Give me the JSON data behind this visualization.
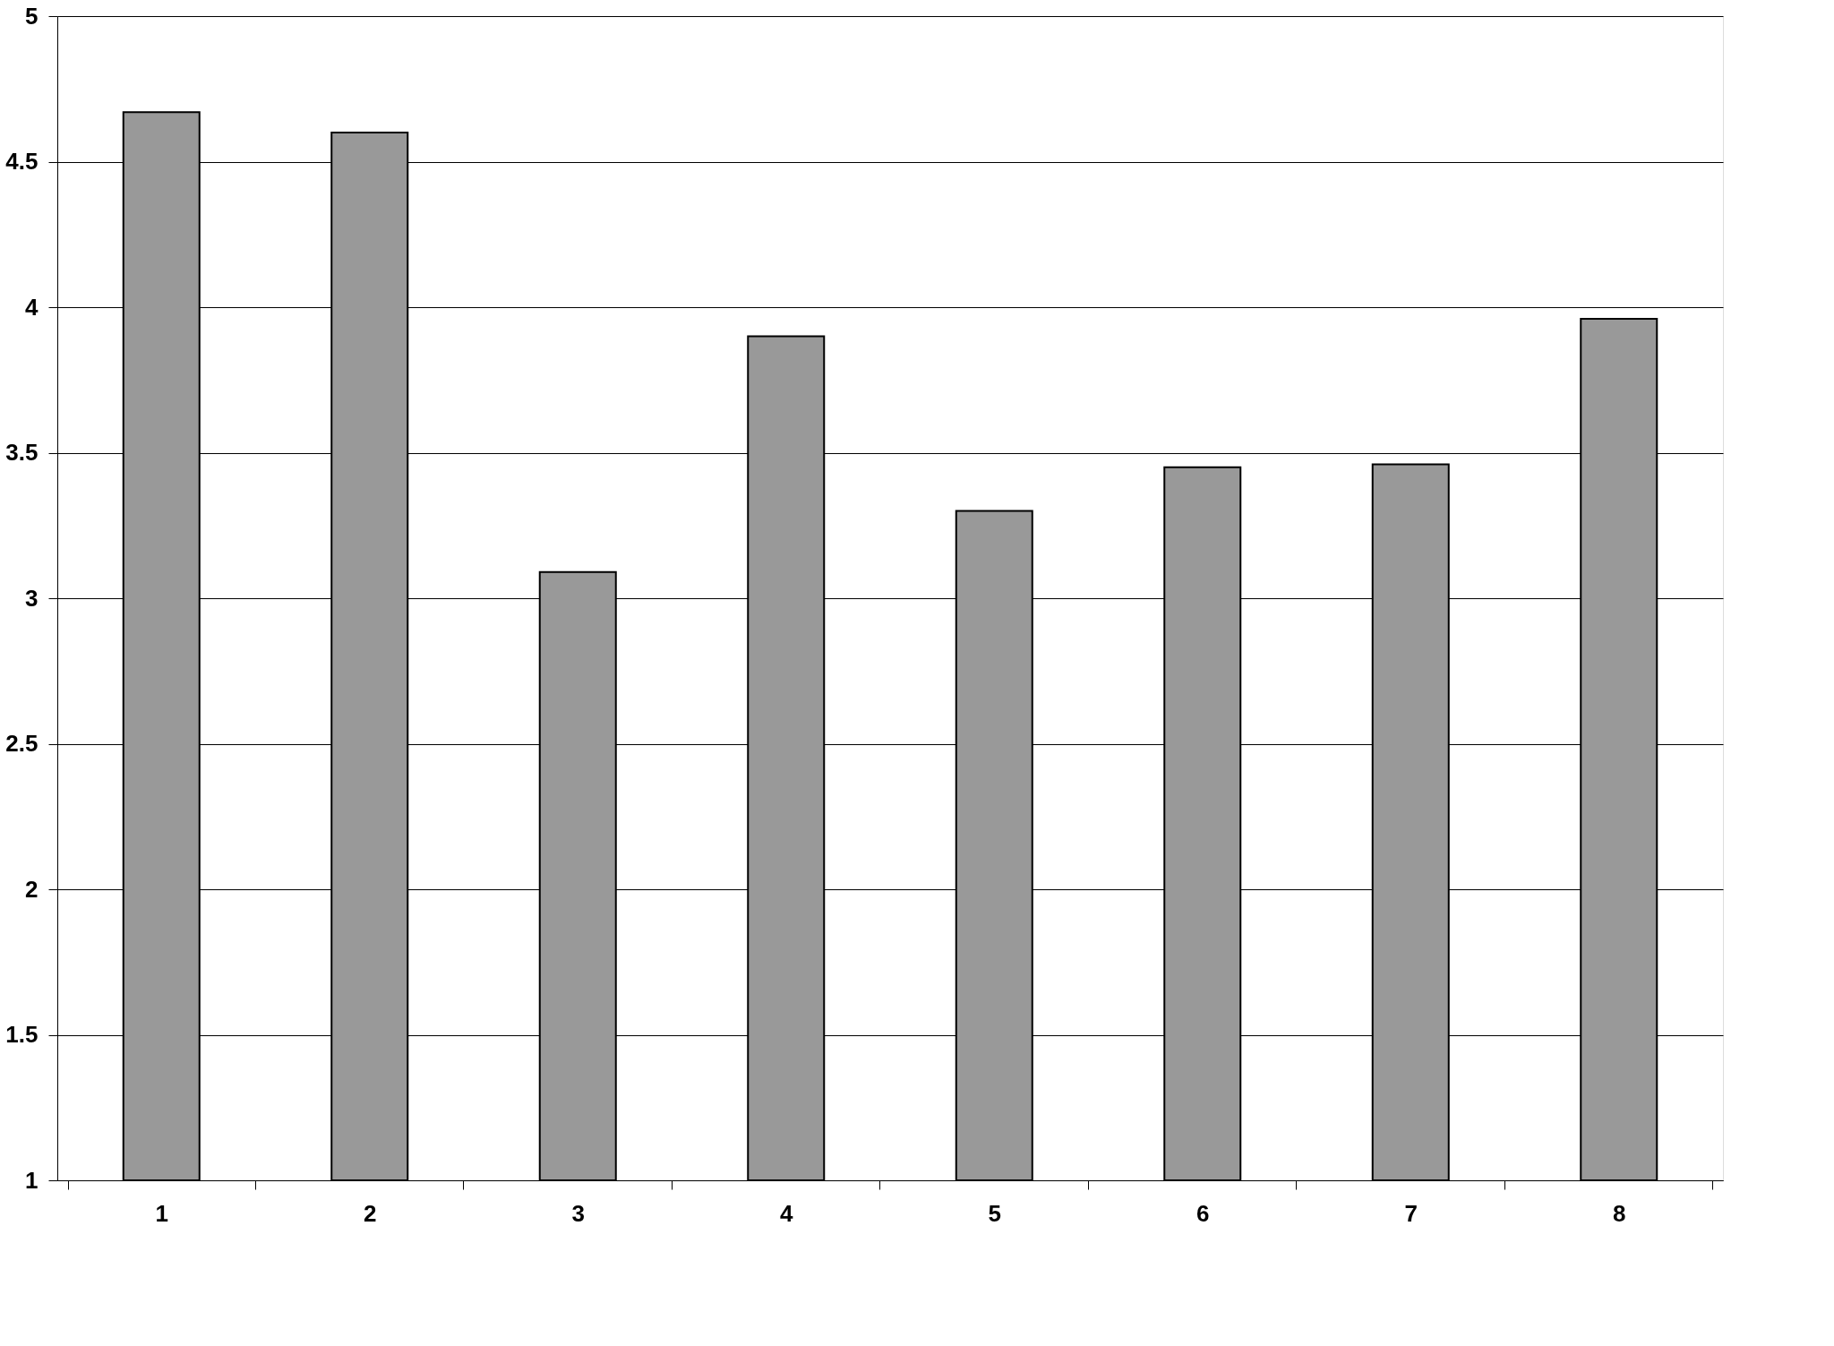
{
  "chart_data": {
    "type": "bar",
    "categories": [
      "1",
      "2",
      "3",
      "4",
      "5",
      "6",
      "7",
      "8"
    ],
    "values": [
      4.67,
      4.6,
      3.09,
      3.9,
      3.3,
      3.45,
      3.46,
      3.96
    ],
    "color": "#999999",
    "ylim": [
      1,
      5
    ],
    "yticks": [
      1,
      1.5,
      2,
      2.5,
      3,
      3.5,
      4,
      4.5,
      5
    ],
    "grid": "y"
  }
}
